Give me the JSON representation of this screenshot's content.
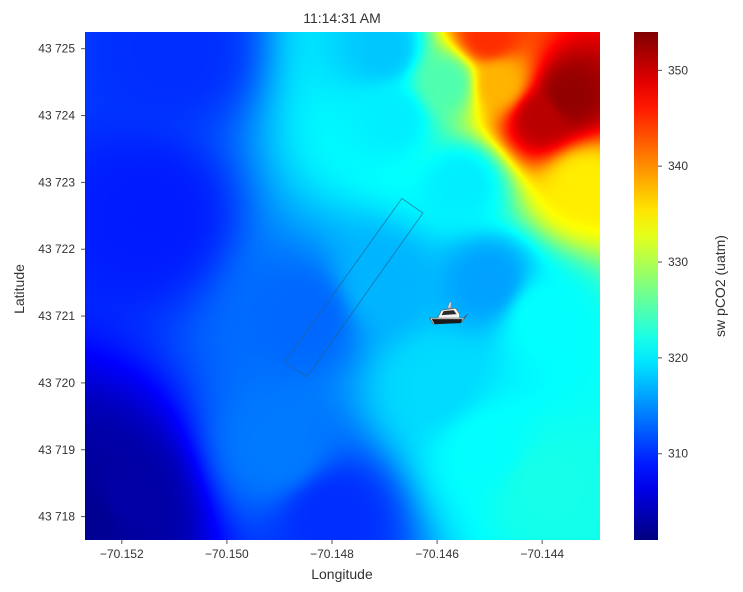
{
  "chart_data": {
    "type": "heatmap",
    "title": "11:14:31 AM",
    "xlabel": "Longitude",
    "ylabel": "Latitude",
    "colorbar_label": "sw pCO2 (uatm)",
    "colormap": "jet",
    "xlim": [
      -70.1527,
      -70.1429
    ],
    "ylim": [
      43.71765,
      43.72525
    ],
    "x_ticks": [
      -70.152,
      -70.15,
      -70.148,
      -70.146,
      -70.144
    ],
    "x_tick_labels": [
      "−70.152",
      "−70.150",
      "−70.148",
      "−70.146",
      "−70.144"
    ],
    "y_ticks": [
      43.718,
      43.719,
      43.72,
      43.721,
      43.722,
      43.723,
      43.724,
      43.725
    ],
    "y_tick_labels": [
      "43 718",
      "43 719",
      "43 720",
      "43 721",
      "43 722",
      "43 723",
      "43 724",
      "43 725"
    ],
    "color_range": [
      301,
      354
    ],
    "colorbar_ticks": [
      310,
      320,
      330,
      340,
      350
    ],
    "colorbar_tick_labels": [
      "310",
      "320",
      "330",
      "340",
      "350"
    ],
    "field_samples": [
      {
        "lon": -70.1525,
        "lat": 43.718,
        "value": 302
      },
      {
        "lon": -70.152,
        "lat": 43.7182,
        "value": 303
      },
      {
        "lon": -70.1515,
        "lat": 43.7225,
        "value": 309
      },
      {
        "lon": -70.151,
        "lat": 43.725,
        "value": 310
      },
      {
        "lon": -70.149,
        "lat": 43.719,
        "value": 314
      },
      {
        "lon": -70.1485,
        "lat": 43.721,
        "value": 313
      },
      {
        "lon": -70.148,
        "lat": 43.718,
        "value": 310
      },
      {
        "lon": -70.147,
        "lat": 43.725,
        "value": 318
      },
      {
        "lon": -70.147,
        "lat": 43.7215,
        "value": 317
      },
      {
        "lon": -70.1468,
        "lat": 43.724,
        "value": 320
      },
      {
        "lon": -70.146,
        "lat": 43.72,
        "value": 319
      },
      {
        "lon": -70.145,
        "lat": 43.7215,
        "value": 316
      },
      {
        "lon": -70.145,
        "lat": 43.719,
        "value": 321
      },
      {
        "lon": -70.144,
        "lat": 43.7185,
        "value": 322
      },
      {
        "lon": -70.144,
        "lat": 43.721,
        "value": 321
      },
      {
        "lon": -70.1455,
        "lat": 43.723,
        "value": 320
      },
      {
        "lon": -70.1458,
        "lat": 43.7245,
        "value": 325
      },
      {
        "lon": -70.1448,
        "lat": 43.7245,
        "value": 338
      },
      {
        "lon": -70.144,
        "lat": 43.724,
        "value": 351
      },
      {
        "lon": -70.1435,
        "lat": 43.7243,
        "value": 353
      },
      {
        "lon": -70.145,
        "lat": 43.7252,
        "value": 345
      },
      {
        "lon": -70.1432,
        "lat": 43.723,
        "value": 335
      }
    ],
    "transect_polygon": [
      {
        "lon": -70.1489,
        "lat": 43.72031
      },
      {
        "lon": -70.14667,
        "lat": 43.72276
      },
      {
        "lon": -70.14627,
        "lat": 43.72254
      },
      {
        "lon": -70.14848,
        "lat": 43.72009
      }
    ],
    "vessel_position": {
      "lon": -70.1458,
      "lat": 43.721
    },
    "grid": false
  },
  "icons": {
    "vessel": "boat-icon"
  }
}
